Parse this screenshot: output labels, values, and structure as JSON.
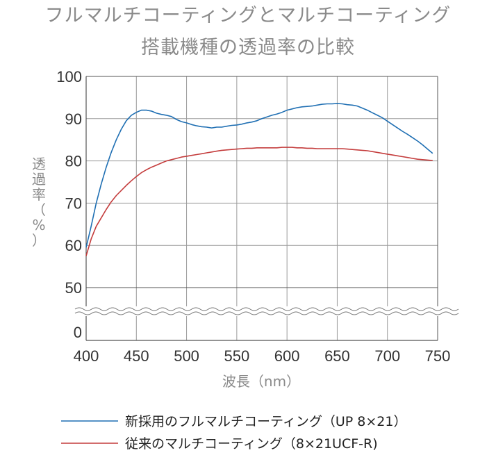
{
  "chart_data": {
    "type": "line",
    "title": "フルマルチコーティングとマルチコーティング",
    "subtitle": "搭載機種の透過率の比較",
    "xlabel": "波長（nm）",
    "ylabel_chars": [
      "透",
      "過",
      "率",
      "（",
      "%",
      "）"
    ],
    "xlim": [
      400,
      750
    ],
    "x_ticks": [
      "400",
      "450",
      "500",
      "550",
      "600",
      "650",
      "700",
      "750"
    ],
    "y_ticks": [
      "100",
      "90",
      "80",
      "70",
      "60",
      "50",
      "0"
    ],
    "y_axis_break": "between 50 and 0",
    "grid": true,
    "legend_position": "bottom",
    "series": [
      {
        "name": "新採用のフルマルチコーティング（UP 8×21）",
        "color": "#1f6fb3",
        "points": [
          [
            400,
            59.5
          ],
          [
            405,
            64.5
          ],
          [
            410,
            70
          ],
          [
            415,
            74.5
          ],
          [
            420,
            78.5
          ],
          [
            425,
            82
          ],
          [
            430,
            85
          ],
          [
            435,
            87.5
          ],
          [
            440,
            89.5
          ],
          [
            445,
            90.8
          ],
          [
            450,
            91.5
          ],
          [
            455,
            92
          ],
          [
            460,
            92
          ],
          [
            465,
            91.8
          ],
          [
            470,
            91.3
          ],
          [
            475,
            91
          ],
          [
            480,
            90.8
          ],
          [
            485,
            90.5
          ],
          [
            490,
            89.8
          ],
          [
            495,
            89.3
          ],
          [
            500,
            89
          ],
          [
            505,
            88.6
          ],
          [
            510,
            88.3
          ],
          [
            515,
            88.1
          ],
          [
            520,
            88
          ],
          [
            525,
            87.8
          ],
          [
            530,
            88
          ],
          [
            535,
            88
          ],
          [
            540,
            88.2
          ],
          [
            545,
            88.4
          ],
          [
            550,
            88.5
          ],
          [
            555,
            88.7
          ],
          [
            560,
            89
          ],
          [
            565,
            89.2
          ],
          [
            570,
            89.5
          ],
          [
            575,
            90
          ],
          [
            580,
            90.4
          ],
          [
            585,
            90.8
          ],
          [
            590,
            91.1
          ],
          [
            595,
            91.5
          ],
          [
            600,
            92
          ],
          [
            605,
            92.3
          ],
          [
            610,
            92.6
          ],
          [
            615,
            92.8
          ],
          [
            620,
            92.9
          ],
          [
            625,
            93
          ],
          [
            630,
            93.2
          ],
          [
            635,
            93.4
          ],
          [
            640,
            93.5
          ],
          [
            645,
            93.5
          ],
          [
            650,
            93.6
          ],
          [
            655,
            93.5
          ],
          [
            660,
            93.3
          ],
          [
            665,
            93.2
          ],
          [
            670,
            93
          ],
          [
            675,
            92.5
          ],
          [
            680,
            92
          ],
          [
            685,
            91.4
          ],
          [
            690,
            90.8
          ],
          [
            695,
            90.2
          ],
          [
            700,
            89.4
          ],
          [
            705,
            88.6
          ],
          [
            710,
            87.8
          ],
          [
            715,
            87
          ],
          [
            720,
            86.3
          ],
          [
            725,
            85.5
          ],
          [
            730,
            84.7
          ],
          [
            735,
            83.8
          ],
          [
            740,
            82.8
          ],
          [
            745,
            81.8
          ]
        ]
      },
      {
        "name": "従来のマルチコーティング（8×21UCF-R)",
        "color": "#c43c3c",
        "points": [
          [
            400,
            57.5
          ],
          [
            405,
            61.5
          ],
          [
            410,
            64.5
          ],
          [
            415,
            66.5
          ],
          [
            420,
            68.5
          ],
          [
            425,
            70.3
          ],
          [
            430,
            71.8
          ],
          [
            435,
            73
          ],
          [
            440,
            74.2
          ],
          [
            445,
            75.3
          ],
          [
            450,
            76.3
          ],
          [
            455,
            77.2
          ],
          [
            460,
            77.9
          ],
          [
            465,
            78.5
          ],
          [
            470,
            79
          ],
          [
            475,
            79.5
          ],
          [
            480,
            80
          ],
          [
            485,
            80.3
          ],
          [
            490,
            80.6
          ],
          [
            495,
            80.9
          ],
          [
            500,
            81.1
          ],
          [
            505,
            81.3
          ],
          [
            510,
            81.5
          ],
          [
            515,
            81.7
          ],
          [
            520,
            81.9
          ],
          [
            525,
            82.1
          ],
          [
            530,
            82.3
          ],
          [
            535,
            82.5
          ],
          [
            540,
            82.6
          ],
          [
            545,
            82.7
          ],
          [
            550,
            82.8
          ],
          [
            555,
            82.9
          ],
          [
            560,
            83
          ],
          [
            565,
            83
          ],
          [
            570,
            83.1
          ],
          [
            575,
            83.1
          ],
          [
            580,
            83.1
          ],
          [
            585,
            83.1
          ],
          [
            590,
            83.1
          ],
          [
            595,
            83.2
          ],
          [
            600,
            83.2
          ],
          [
            605,
            83.2
          ],
          [
            610,
            83.1
          ],
          [
            615,
            83.1
          ],
          [
            620,
            83
          ],
          [
            625,
            83
          ],
          [
            630,
            82.9
          ],
          [
            635,
            82.9
          ],
          [
            640,
            82.9
          ],
          [
            645,
            82.9
          ],
          [
            650,
            82.9
          ],
          [
            655,
            82.9
          ],
          [
            660,
            82.8
          ],
          [
            665,
            82.7
          ],
          [
            670,
            82.6
          ],
          [
            675,
            82.5
          ],
          [
            680,
            82.4
          ],
          [
            685,
            82.2
          ],
          [
            690,
            82
          ],
          [
            695,
            81.8
          ],
          [
            700,
            81.6
          ],
          [
            705,
            81.4
          ],
          [
            710,
            81.2
          ],
          [
            715,
            81
          ],
          [
            720,
            80.8
          ],
          [
            725,
            80.6
          ],
          [
            730,
            80.4
          ],
          [
            735,
            80.3
          ],
          [
            740,
            80.2
          ],
          [
            745,
            80.1
          ]
        ]
      }
    ]
  }
}
